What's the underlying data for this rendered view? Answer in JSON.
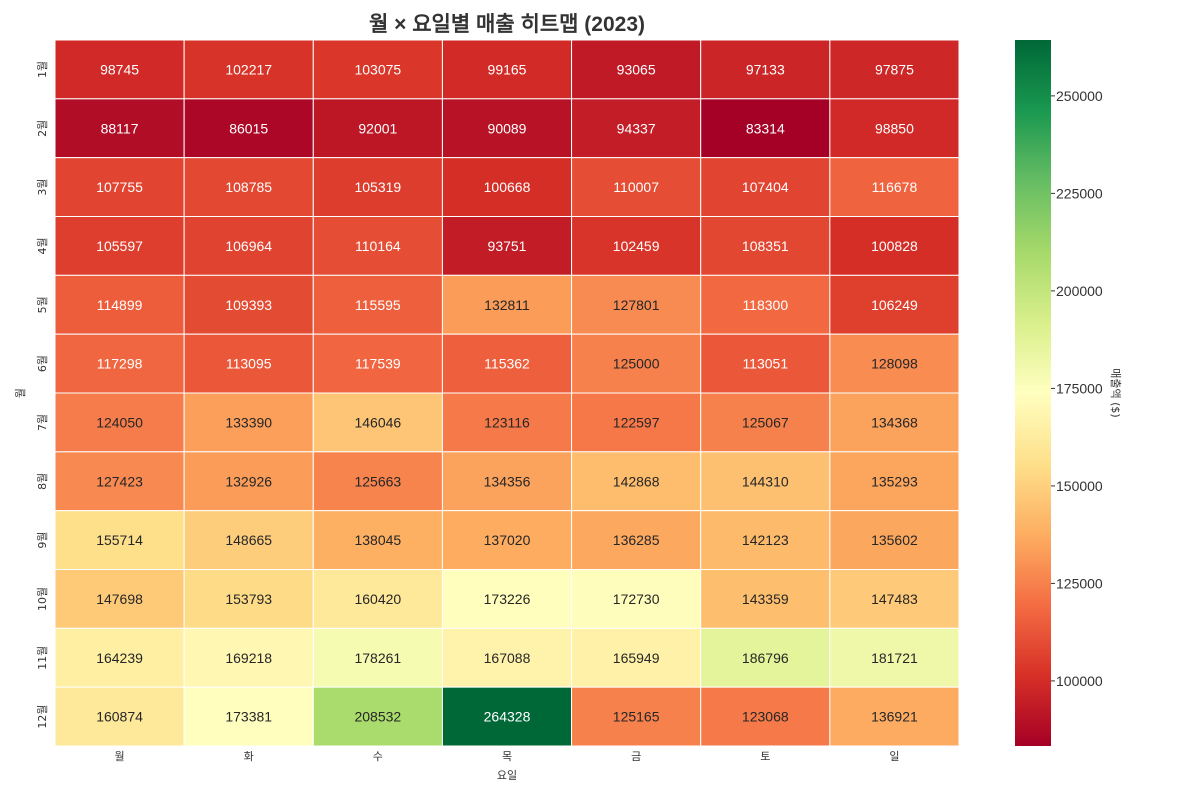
{
  "chart_data": {
    "type": "heatmap",
    "title": "월 × 요일별 매출 히트맵 (2023)",
    "xlabel": "요일",
    "ylabel": "월",
    "colorbar_label": "매출액 ($)",
    "x_categories": [
      "월",
      "화",
      "수",
      "목",
      "금",
      "토",
      "일"
    ],
    "y_categories": [
      "1월",
      "2월",
      "3월",
      "4월",
      "5월",
      "6월",
      "7월",
      "8월",
      "9월",
      "10월",
      "11월",
      "12월"
    ],
    "values": [
      [
        98745,
        102217,
        103075,
        99165,
        93065,
        97133,
        97875
      ],
      [
        88117,
        86015,
        92001,
        90089,
        94337,
        83314,
        98850
      ],
      [
        107755,
        108785,
        105319,
        100668,
        110007,
        107404,
        116678
      ],
      [
        105597,
        106964,
        110164,
        93751,
        102459,
        108351,
        100828
      ],
      [
        114899,
        109393,
        115595,
        132811,
        127801,
        118300,
        106249
      ],
      [
        117298,
        113095,
        117539,
        115362,
        125000,
        113051,
        128098
      ],
      [
        124050,
        133390,
        146046,
        123116,
        122597,
        125067,
        134368
      ],
      [
        127423,
        132926,
        125663,
        134356,
        142868,
        144310,
        135293
      ],
      [
        155714,
        148665,
        138045,
        137020,
        136285,
        142123,
        135602
      ],
      [
        147698,
        153793,
        160420,
        173226,
        172730,
        143359,
        147483
      ],
      [
        164239,
        169218,
        178261,
        167088,
        165949,
        186796,
        181721
      ],
      [
        160874,
        173381,
        208532,
        264328,
        125165,
        123068,
        136921
      ]
    ],
    "colormap": "RdYlGn",
    "color_range": [
      83314,
      264328
    ],
    "colorbar_ticks": [
      100000,
      125000,
      150000,
      175000,
      200000,
      225000,
      250000
    ],
    "colorbar_tick_labels": [
      "100000",
      "125000",
      "150000",
      "175000",
      "200000",
      "225000",
      "250000"
    ],
    "annotated": true,
    "grid": false,
    "legend": "colorbar-right"
  }
}
